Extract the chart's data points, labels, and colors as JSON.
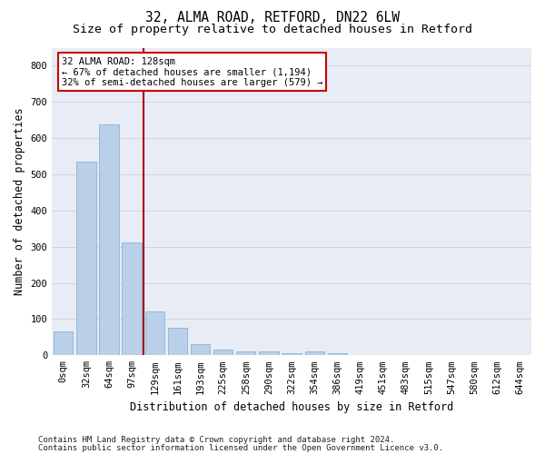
{
  "title_line1": "32, ALMA ROAD, RETFORD, DN22 6LW",
  "title_line2": "Size of property relative to detached houses in Retford",
  "xlabel": "Distribution of detached houses by size in Retford",
  "ylabel": "Number of detached properties",
  "bar_labels": [
    "0sqm",
    "32sqm",
    "64sqm",
    "97sqm",
    "129sqm",
    "161sqm",
    "193sqm",
    "225sqm",
    "258sqm",
    "290sqm",
    "322sqm",
    "354sqm",
    "386sqm",
    "419sqm",
    "451sqm",
    "483sqm",
    "515sqm",
    "547sqm",
    "580sqm",
    "612sqm",
    "644sqm"
  ],
  "bar_heights": [
    65,
    535,
    638,
    312,
    120,
    77,
    30,
    17,
    10,
    10,
    5,
    10,
    7,
    0,
    0,
    0,
    0,
    0,
    0,
    0,
    0
  ],
  "bar_color": "#bad0e8",
  "bar_edgecolor": "#7aaad0",
  "vline_color": "#aa0000",
  "annotation_text": "32 ALMA ROAD: 128sqm\n← 67% of detached houses are smaller (1,194)\n32% of semi-detached houses are larger (579) →",
  "annotation_box_facecolor": "#ffffff",
  "annotation_box_edgecolor": "#cc0000",
  "ylim": [
    0,
    850
  ],
  "yticks": [
    0,
    100,
    200,
    300,
    400,
    500,
    600,
    700,
    800
  ],
  "grid_color": "#ccd6e8",
  "bg_color": "#e8edf5",
  "footer_line1": "Contains HM Land Registry data © Crown copyright and database right 2024.",
  "footer_line2": "Contains public sector information licensed under the Open Government Licence v3.0.",
  "title_fontsize": 10.5,
  "subtitle_fontsize": 9.5,
  "axis_label_fontsize": 8.5,
  "tick_fontsize": 7.5,
  "annotation_fontsize": 7.5,
  "footer_fontsize": 6.5,
  "vline_bar_index": 4
}
